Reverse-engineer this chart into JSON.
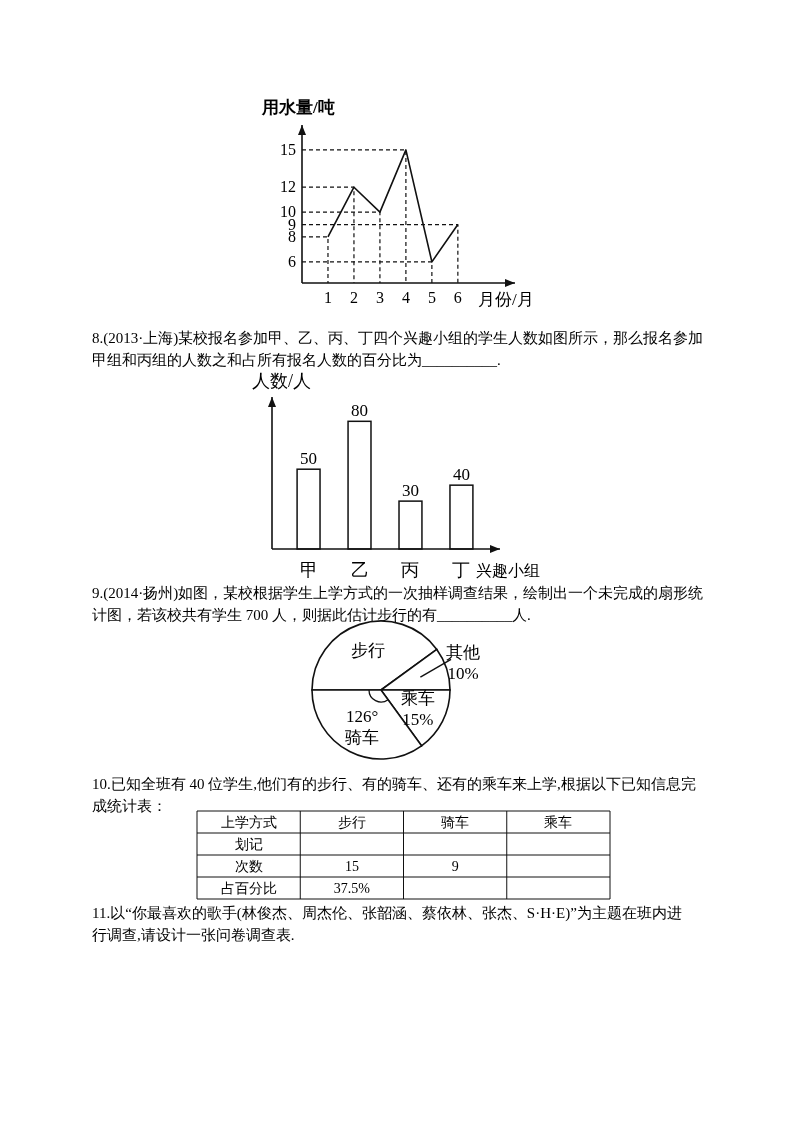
{
  "chart_data": [
    {
      "type": "line",
      "xlabel": "月份/月",
      "ylabel": "用水量/吨",
      "series": [
        {
          "x": [
            1,
            2,
            3,
            4,
            5,
            6
          ],
          "values": [
            8,
            12,
            10,
            15,
            6,
            9
          ],
          "color": "#111111",
          "line_style": "solid"
        },
        {
          "x": [
            0,
            1,
            1
          ],
          "values": [
            8,
            8,
            4.3
          ],
          "color": "#111111",
          "line_style": "dashed"
        },
        {
          "x": [
            0,
            2,
            2
          ],
          "values": [
            12,
            12,
            4.3
          ],
          "color": "#111111",
          "line_style": "dashed"
        },
        {
          "x": [
            0,
            3,
            3
          ],
          "values": [
            10,
            10,
            4.3
          ],
          "color": "#111111",
          "line_style": "dashed"
        },
        {
          "x": [
            0,
            4,
            4
          ],
          "values": [
            15,
            15,
            4.3
          ],
          "color": "#111111",
          "line_style": "dashed"
        },
        {
          "x": [
            0,
            5,
            5
          ],
          "values": [
            6,
            6,
            4.3
          ],
          "color": "#111111",
          "line_style": "dashed"
        },
        {
          "x": [
            0,
            6,
            6
          ],
          "values": [
            9,
            9,
            4.3
          ],
          "color": "#111111",
          "line_style": "dashed"
        }
      ],
      "xlim": [
        0,
        8.2
      ],
      "xticks": [
        1,
        2,
        3,
        4,
        5,
        6
      ],
      "ylim": [
        4.3,
        17
      ],
      "yticks": [
        6,
        8,
        9,
        10,
        12,
        15
      ],
      "marker": "none"
    },
    {
      "type": "bar",
      "title": "8.(2013·上海)某校报名参加甲、乙、丙、丁四个兴趣小组的学生人数如图所示，那么报名参加甲组和丙组的人数之和占所有报名人数的百分比为__________.",
      "xlabel": "兴趣小组",
      "ylabel": "人数/人",
      "categories": [
        "甲",
        "乙",
        "丙",
        "丁"
      ],
      "values": [
        50,
        80,
        30,
        40
      ],
      "color": "#ffffff",
      "data_labels": true
    },
    {
      "type": "pie",
      "title": "9.(2014·扬州)如图，某校根据学生上学方式的一次抽样调查结果，绘制出一个未完成的扇形统计图，若该校共有学生 700 人，则据此估计步行的有__________人.",
      "categories": [
        "步行",
        "其他",
        "乘车",
        "骑车"
      ],
      "values": [
        40,
        10,
        15,
        35
      ],
      "value_labels": [
        null,
        "10%",
        "15%",
        null
      ],
      "annotations": [
        {
          "text": "126°",
          "x": "骑车"
        }
      ],
      "colors": [
        "#ffffff",
        "#ffffff",
        "#ffffff",
        "#ffffff"
      ]
    },
    {
      "type": "other",
      "title": "10.已知全班有 40 位学生,他们有的步行、有的骑车、还有的乘车来上学,根据以下已知信息完成统计表：",
      "legend_title": "上学方式",
      "categories": [
        "步行",
        "骑车",
        "乘车"
      ],
      "y_categories": [
        "划记",
        "次数",
        "占百分比"
      ],
      "cell_labels": [
        [
          null,
          null,
          null
        ],
        [
          "15",
          "9",
          null
        ],
        [
          "37.5%",
          null,
          null
        ]
      ],
      "annotations": [
        "11.以“你最喜欢的歌手(林俊杰、周杰伦、张韶涵、蔡依林、张杰、S·H·E)”为主题在班内进行调查,请设计一张问卷调查表."
      ]
    }
  ]
}
